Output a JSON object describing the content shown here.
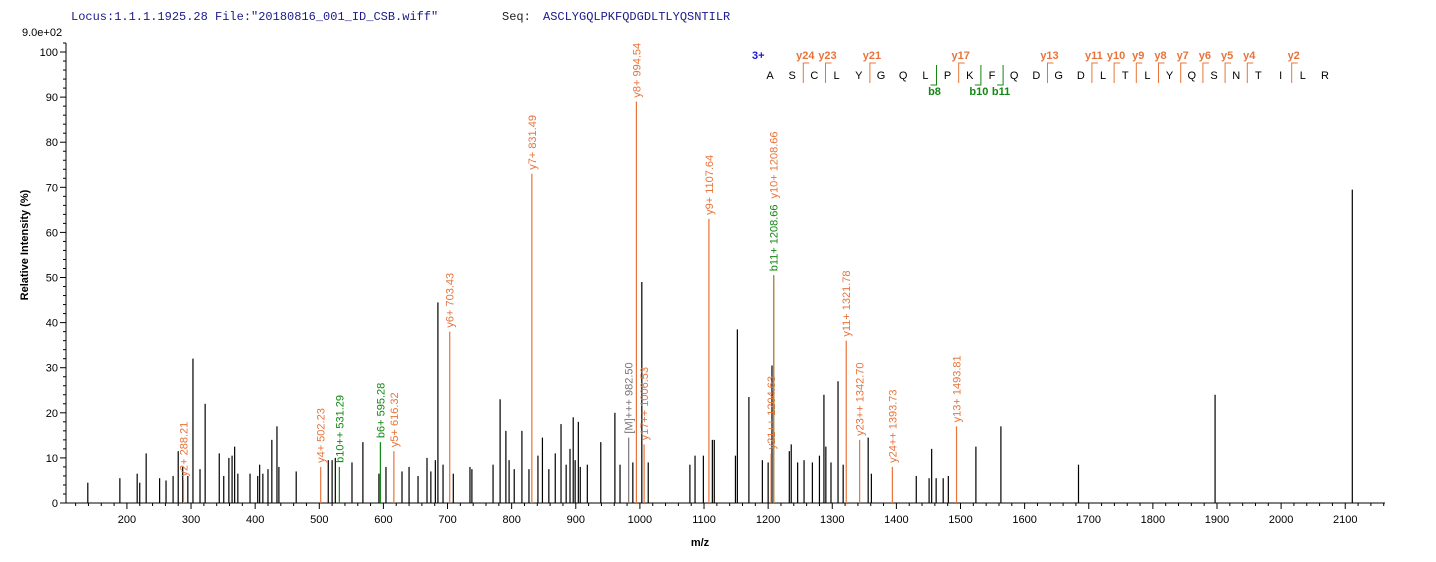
{
  "header": {
    "locus": "Locus:1.1.1.1925.28 File:\"20180816_001_ID_CSB.wiff\"",
    "seq_label": "Seq:",
    "sequence": "ASCLYGQLPKFQDGDLTLYQSNTILR"
  },
  "chart_data": {
    "type": "spectrum",
    "intensity_max_label": "9.0e+02",
    "x_label": "m/z",
    "y_label": "Relative  Intensity (%)",
    "xlim": [
      105,
      2162
    ],
    "ylim": [
      0,
      102
    ],
    "xticks": [
      200,
      300,
      400,
      500,
      600,
      700,
      800,
      900,
      1000,
      1100,
      1200,
      1300,
      1400,
      1500,
      1600,
      1700,
      1800,
      1900,
      2000,
      2100
    ],
    "yticks": [
      0,
      10,
      20,
      30,
      40,
      50,
      60,
      70,
      80,
      90,
      100
    ],
    "peak_color": "#000000",
    "peaks": {
      "mz": [
        139,
        189,
        216,
        220,
        230,
        251,
        261,
        272,
        280,
        287,
        295,
        303,
        314,
        322,
        344,
        351,
        359,
        364,
        368,
        373,
        392,
        404,
        407,
        412,
        420,
        426,
        434,
        437,
        464,
        514,
        520,
        525,
        551,
        568,
        593,
        604,
        629,
        640,
        654,
        668,
        674,
        681,
        685,
        693,
        709,
        735,
        738,
        771,
        782,
        791,
        796,
        804,
        816,
        827,
        841,
        848,
        858,
        868,
        877,
        885,
        891,
        896,
        899,
        904,
        907,
        918,
        939,
        961,
        969,
        989,
        1003,
        1013,
        1078,
        1086,
        1099,
        1113,
        1116,
        1149,
        1152,
        1170,
        1191,
        1200,
        1206,
        1233,
        1236,
        1246,
        1256,
        1269,
        1280,
        1287,
        1290,
        1298,
        1309,
        1317,
        1356,
        1361,
        1431,
        1451,
        1455,
        1462,
        1473,
        1481,
        1524,
        1563,
        1684,
        1897,
        2111
      ],
      "intensity": [
        4.5,
        5.5,
        6.5,
        4.5,
        11,
        5.5,
        5,
        6,
        11.5,
        8,
        6,
        32,
        7.5,
        22,
        11,
        6,
        10,
        10.5,
        12.5,
        6.5,
        6.5,
        6,
        8.5,
        6.5,
        7.5,
        14,
        17,
        8,
        7,
        9.5,
        9.5,
        10,
        9,
        13.5,
        6.5,
        8,
        7,
        8,
        6,
        10,
        7,
        9.5,
        44.5,
        8.5,
        6.5,
        8,
        7.5,
        8.5,
        23,
        16,
        9.5,
        7.5,
        16,
        7.5,
        10.5,
        14.5,
        7.5,
        11,
        17.5,
        8.5,
        12,
        19,
        9.5,
        18,
        8,
        8.5,
        13.5,
        20,
        8.5,
        9,
        49,
        9,
        8.5,
        10.5,
        10.5,
        14,
        14,
        10.5,
        38.5,
        23.5,
        9.5,
        9,
        30.5,
        11.5,
        13,
        9,
        9.5,
        9,
        10.5,
        24,
        12.5,
        9,
        27,
        8.5,
        14.5,
        6.5,
        6,
        5.5,
        12,
        5.5,
        5.5,
        6,
        12.5,
        17,
        8.5,
        24,
        69.5
      ]
    },
    "annotations": [
      {
        "mz": 288.21,
        "intensity": 5,
        "label": "y2+ 288.21",
        "color": "#e8743b"
      },
      {
        "mz": 502.23,
        "intensity": 8,
        "label": "y4+ 502.23",
        "color": "#e8743b"
      },
      {
        "mz": 531.29,
        "intensity": 8,
        "label": "b10++ 531.29",
        "color": "#118811"
      },
      {
        "mz": 595.28,
        "intensity": 13.5,
        "label": "b6+ 595.28",
        "color": "#118811"
      },
      {
        "mz": 616.32,
        "intensity": 11.5,
        "label": "y5+ 616.32",
        "color": "#e8743b"
      },
      {
        "mz": 703.43,
        "intensity": 38,
        "label": "y6+ 703.43",
        "color": "#e8743b"
      },
      {
        "mz": 831.49,
        "intensity": 73,
        "label": "y7+ 831.49",
        "color": "#e8743b"
      },
      {
        "mz": 982.5,
        "intensity": 14.5,
        "label": "[M]+++ 982.50",
        "color": "#777777"
      },
      {
        "mz": 994.54,
        "intensity": 89,
        "label": "y8+ 994.54",
        "color": "#e8743b"
      },
      {
        "mz": 1006.53,
        "intensity": 13,
        "label": "y17++ 1006.53",
        "color": "#e8743b"
      },
      {
        "mz": 1107.64,
        "intensity": 63,
        "label": "y9+ 1107.64",
        "color": "#e8743b"
      },
      {
        "mz": 1204.63,
        "intensity": 11,
        "label": "y21++ 1204.63",
        "color": "#e8743b"
      },
      {
        "mz": 1208.66,
        "intensity": 50.5,
        "label": "b11+ 1208.66",
        "color": "#118811"
      },
      {
        "mz": 1208.66,
        "intensity": 50.5,
        "label": "y10+ 1208.66",
        "color": "#e8743b"
      },
      {
        "mz": 1321.78,
        "intensity": 36,
        "label": "y11+ 1321.78",
        "color": "#e8743b"
      },
      {
        "mz": 1342.7,
        "intensity": 14,
        "label": "y23++ 1342.70",
        "color": "#e8743b"
      },
      {
        "mz": 1393.73,
        "intensity": 8,
        "label": "y24++ 1393.73",
        "color": "#e8743b"
      },
      {
        "mz": 1493.81,
        "intensity": 17,
        "label": "y13+ 1493.81",
        "color": "#e8743b"
      }
    ]
  },
  "sequence_panel": {
    "charge": "3+",
    "residues": [
      "A",
      "S",
      "C",
      "L",
      "Y",
      "G",
      "Q",
      "L",
      "P",
      "K",
      "F",
      "Q",
      "D",
      "G",
      "D",
      "L",
      "T",
      "L",
      "Y",
      "Q",
      "S",
      "N",
      "T",
      "I",
      "L",
      "R"
    ],
    "y_ions": [
      "y24",
      "y23",
      "y21",
      "y17",
      "y13",
      "y11",
      "y10",
      "y9",
      "y8",
      "y7",
      "y6",
      "y5",
      "y4",
      "y2"
    ],
    "b_ions": [
      "b8",
      "b10",
      "b11"
    ]
  }
}
